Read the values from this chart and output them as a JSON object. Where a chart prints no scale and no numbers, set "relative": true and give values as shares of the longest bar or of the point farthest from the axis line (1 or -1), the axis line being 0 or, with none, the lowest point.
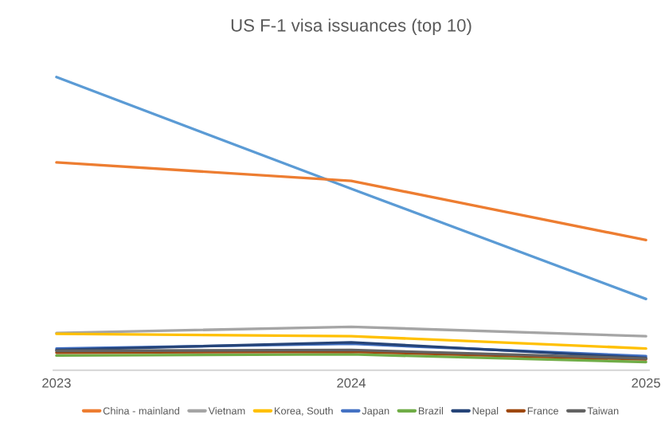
{
  "chart_data": {
    "type": "line",
    "title": "US F-1 visa issuances (top 10)",
    "relative": true,
    "categories": [
      "2023",
      "2024",
      "2025"
    ],
    "legend": "bottom",
    "grid": false,
    "series": [
      {
        "color": "#5b9bd5",
        "values": [
          1,
          0.619,
          0.243
        ]
      },
      {
        "name": "China - mainland",
        "color": "#ed7d31",
        "values": [
          0.709,
          0.646,
          0.444
        ]
      },
      {
        "name": "Vietnam",
        "color": "#a5a5a5",
        "values": [
          0.127,
          0.148,
          0.116
        ]
      },
      {
        "name": "Korea, South",
        "color": "#ffc000",
        "values": [
          0.124,
          0.116,
          0.074
        ]
      },
      {
        "name": "Japan",
        "color": "#4472c4",
        "values": [
          0.074,
          0.09,
          0.048
        ]
      },
      {
        "name": "Brazil",
        "color": "#70ad47",
        "values": [
          0.05,
          0.054,
          0.028
        ]
      },
      {
        "name": "Nepal",
        "color": "#264478",
        "values": [
          0.069,
          0.095,
          0.042
        ]
      },
      {
        "name": "France",
        "color": "#9e480e",
        "values": [
          0.06,
          0.063,
          0.037
        ]
      },
      {
        "name": "Taiwan",
        "color": "#636363",
        "values": [
          0.066,
          0.069,
          0.04
        ]
      }
    ]
  }
}
